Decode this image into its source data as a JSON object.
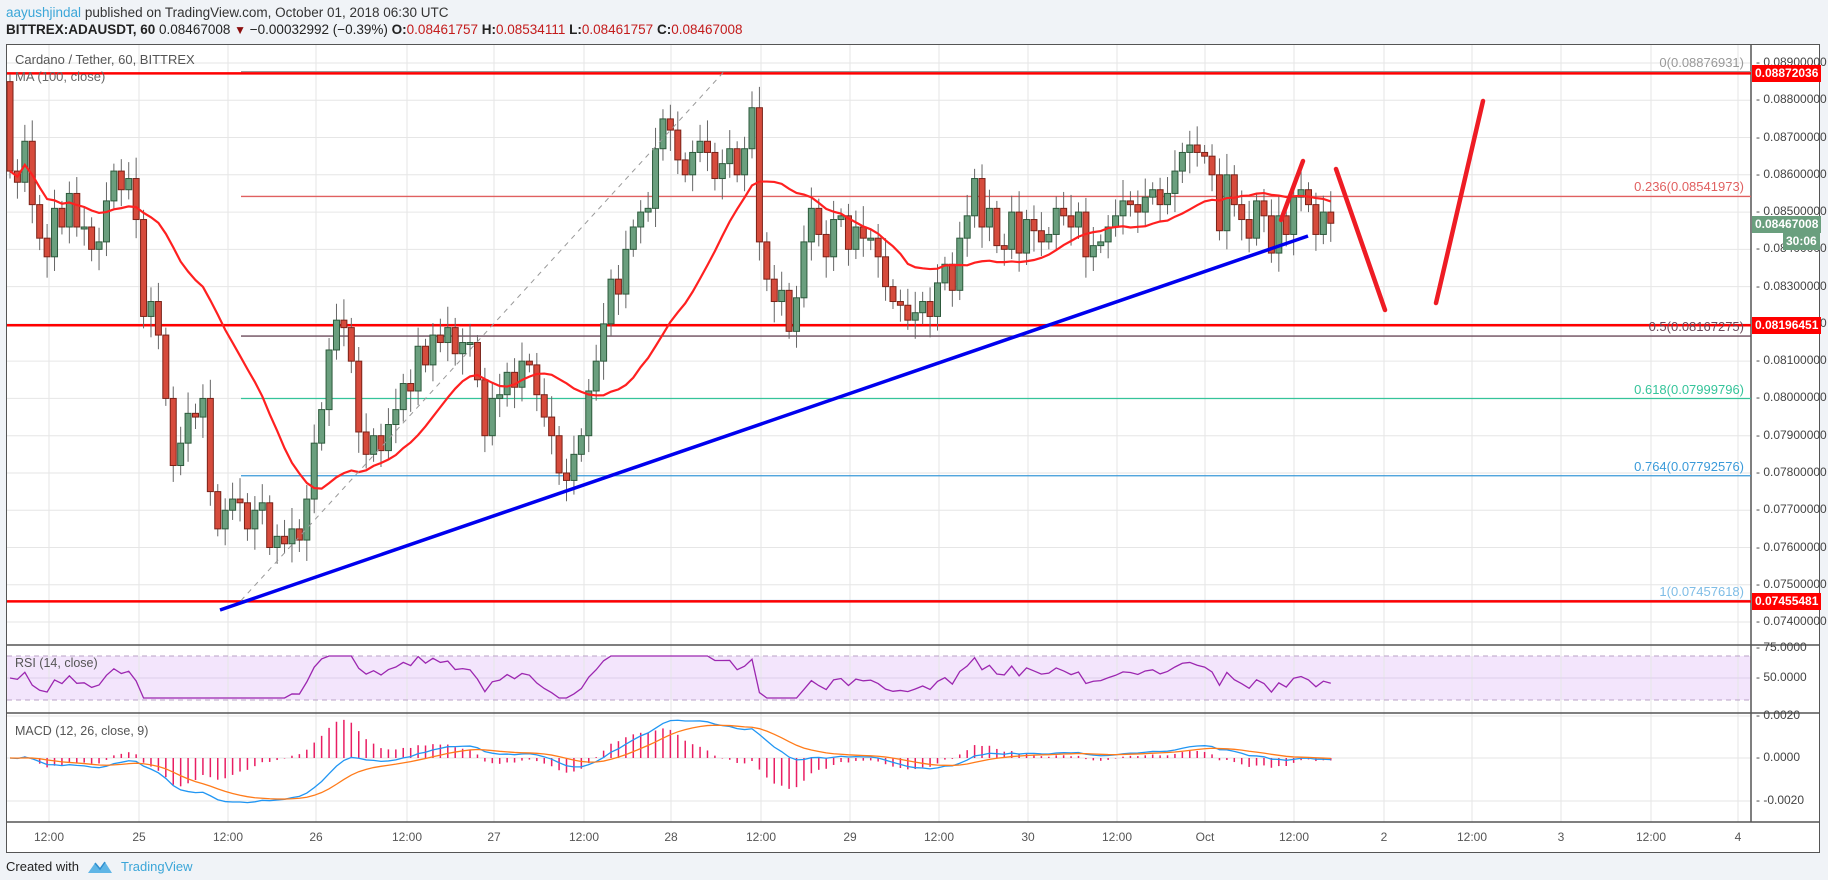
{
  "header": {
    "author": "aayushjindal",
    "published_text": " published on TradingView.com, October 01, 2018 06:30 UTC",
    "symbol": "BITTREX:ADAUSDT, 60",
    "last": "0.08467008",
    "change": "−0.00032992 (−0.39%)",
    "o_label": "O:",
    "o": "0.08461757",
    "h_label": "H:",
    "h": "0.08534111",
    "l_label": "L:",
    "l": "0.08461757",
    "c_label": "C:",
    "c": "0.08467008"
  },
  "panes": {
    "main_title": "Cardano / Tether, 60, BITTREX",
    "ma_label": "MA (100, close)",
    "rsi_label": "RSI (14, close)",
    "macd_label": "MACD (12, 26, close, 9)"
  },
  "price_axis": {
    "ticks": [
      "0.08900000",
      "0.08800000",
      "0.08700000",
      "0.08600000",
      "0.08500000",
      "0.08400000",
      "0.08300000",
      "0.08200000",
      "0.08100000",
      "0.08000000",
      "0.07900000",
      "0.07800000",
      "0.07700000",
      "0.07600000",
      "0.07500000",
      "0.07400000"
    ],
    "tags": [
      {
        "value": "0.08872036",
        "color": "#ff0000"
      },
      {
        "value": "0.08467008",
        "color": "#6a9f7e"
      },
      {
        "value": "30:06",
        "color": "#6a9f7e"
      },
      {
        "value": "0.08196451",
        "color": "#ff0000"
      },
      {
        "value": "0.07455481",
        "color": "#ff0000"
      }
    ]
  },
  "rsi_axis": {
    "ticks": [
      "75.0000",
      "50.0000"
    ]
  },
  "macd_axis": {
    "ticks": [
      "0.0020",
      "0.0000",
      "-0.0020"
    ]
  },
  "time_axis": {
    "labels": [
      "12:00",
      "25",
      "12:00",
      "26",
      "12:00",
      "27",
      "12:00",
      "28",
      "12:00",
      "29",
      "12:00",
      "30",
      "12:00",
      "Oct",
      "12:00",
      "2",
      "12:00",
      "3",
      "12:00",
      "4"
    ]
  },
  "fib_levels": [
    {
      "ratio": "0",
      "price": "0.08876931",
      "label": "0(0.08876931)",
      "color": "#999999"
    },
    {
      "ratio": "0.236",
      "price": "0.08541973",
      "label": "0.236(0.08541973)",
      "color": "#e06060"
    },
    {
      "ratio": "0.5",
      "price": "0.08167275",
      "label": "0.5(0.08167275)",
      "color": "#6b4a5a"
    },
    {
      "ratio": "0.618",
      "price": "0.07999796",
      "label": "0.618(0.07999796)",
      "color": "#35c49a"
    },
    {
      "ratio": "0.764",
      "price": "0.07792576",
      "label": "0.764(0.07792576)",
      "color": "#3a9ad9"
    },
    {
      "ratio": "1",
      "price": "0.07457618",
      "label": "1(0.07457618)",
      "color": "#7fbde6"
    }
  ],
  "horizontal_lines": [
    {
      "price": "0.08872036",
      "color": "#ff0000"
    },
    {
      "price": "0.08196451",
      "color": "#ff0000"
    },
    {
      "price": "0.07455481",
      "color": "#ff0000"
    }
  ],
  "colors": {
    "up": "#6a9f7e",
    "down": "#d64b3c",
    "ma": "#ff2020",
    "trendline": "#0000ee",
    "rsi": "#9c27b0",
    "macd": "#2196f3",
    "signal": "#ff7b1a",
    "hist": "#e91e63"
  },
  "footer": {
    "created_with": "Created with",
    "brand": "TradingView"
  },
  "chart_data": {
    "type": "candlestick",
    "title": "Cardano / Tether, 60, BITTREX",
    "symbol": "BITTREX:ADAUSDT",
    "interval": "60",
    "ylim": [
      0.0737,
      0.0894
    ],
    "x_range": "Sep 24 12:00 – Oct 4",
    "current_price": 0.08467008,
    "ohlc_last": {
      "open": 0.08461757,
      "high": 0.08534111,
      "low": 0.08461757,
      "close": 0.08467008
    },
    "indicators": [
      "MA (100, close)",
      "RSI (14, close)",
      "MACD (12, 26, close, 9)"
    ],
    "fibonacci": [
      {
        "level": 0,
        "price": 0.08876931
      },
      {
        "level": 0.236,
        "price": 0.08541973
      },
      {
        "level": 0.5,
        "price": 0.08167275
      },
      {
        "level": 0.618,
        "price": 0.07999796
      },
      {
        "level": 0.764,
        "price": 0.07792576
      },
      {
        "level": 1,
        "price": 0.07457618
      }
    ],
    "support_resistance": [
      0.08872036,
      0.08196451,
      0.07455481
    ],
    "trendline": {
      "from": {
        "time": "Sep 25 11:00",
        "price": 0.0746
      },
      "to": {
        "time": "Oct 1 12:00",
        "price": 0.0845
      }
    },
    "rsi_range": [
      30,
      75
    ],
    "macd_range": [
      -0.0028,
      0.0022
    ],
    "candles_close_approx": [
      0.0861,
      0.0858,
      0.0869,
      0.0852,
      0.0843,
      0.0838,
      0.0851,
      0.0846,
      0.0855,
      0.0846,
      0.0846,
      0.084,
      0.0842,
      0.0853,
      0.0861,
      0.0856,
      0.0859,
      0.0848,
      0.0822,
      0.0826,
      0.0817,
      0.08,
      0.0782,
      0.0788,
      0.0796,
      0.0795,
      0.08,
      0.0775,
      0.0765,
      0.077,
      0.0773,
      0.0772,
      0.0765,
      0.077,
      0.0772,
      0.076,
      0.0763,
      0.0761,
      0.0765,
      0.0762,
      0.0773,
      0.0788,
      0.0797,
      0.0813,
      0.0821,
      0.0819,
      0.081,
      0.0791,
      0.0785,
      0.079,
      0.0786,
      0.0793,
      0.0797,
      0.0804,
      0.0802,
      0.0814,
      0.0809,
      0.0817,
      0.0815,
      0.0819,
      0.0812,
      0.0815,
      0.0815,
      0.0805,
      0.079,
      0.08,
      0.0801,
      0.0807,
      0.0803,
      0.081,
      0.0809,
      0.0801,
      0.0795,
      0.079,
      0.078,
      0.0778,
      0.0785,
      0.079,
      0.0802,
      0.081,
      0.082,
      0.0832,
      0.0828,
      0.084,
      0.0846,
      0.085,
      0.0851,
      0.0867,
      0.0875,
      0.0872,
      0.0864,
      0.086,
      0.0866,
      0.0869,
      0.0866,
      0.0859,
      0.0863,
      0.0867,
      0.086,
      0.0867,
      0.0878,
      0.0842,
      0.0832,
      0.0826,
      0.0829,
      0.0818,
      0.0827,
      0.0842,
      0.0851,
      0.0844,
      0.0838,
      0.0848,
      0.0849,
      0.084,
      0.0846,
      0.0843,
      0.0843,
      0.0838,
      0.083,
      0.0826,
      0.0825,
      0.0821,
      0.0823,
      0.0826,
      0.0822,
      0.0831,
      0.0836,
      0.0829,
      0.0843,
      0.0849,
      0.0859,
      0.0846,
      0.0851,
      0.0841,
      0.084,
      0.085,
      0.0839,
      0.0848,
      0.0845,
      0.0842,
      0.0844,
      0.0851,
      0.0849,
      0.0846,
      0.085,
      0.0838,
      0.0841,
      0.0842,
      0.0846,
      0.0849,
      0.0853,
      0.0852,
      0.085,
      0.0854,
      0.0856,
      0.0852,
      0.0855,
      0.0861,
      0.0866,
      0.0868,
      0.0866,
      0.0865,
      0.086,
      0.0845,
      0.086,
      0.0852,
      0.0848,
      0.0843,
      0.0853,
      0.0849,
      0.0839,
      0.0849,
      0.0844,
      0.0854,
      0.0856,
      0.0852,
      0.0844,
      0.085,
      0.0847
    ]
  }
}
